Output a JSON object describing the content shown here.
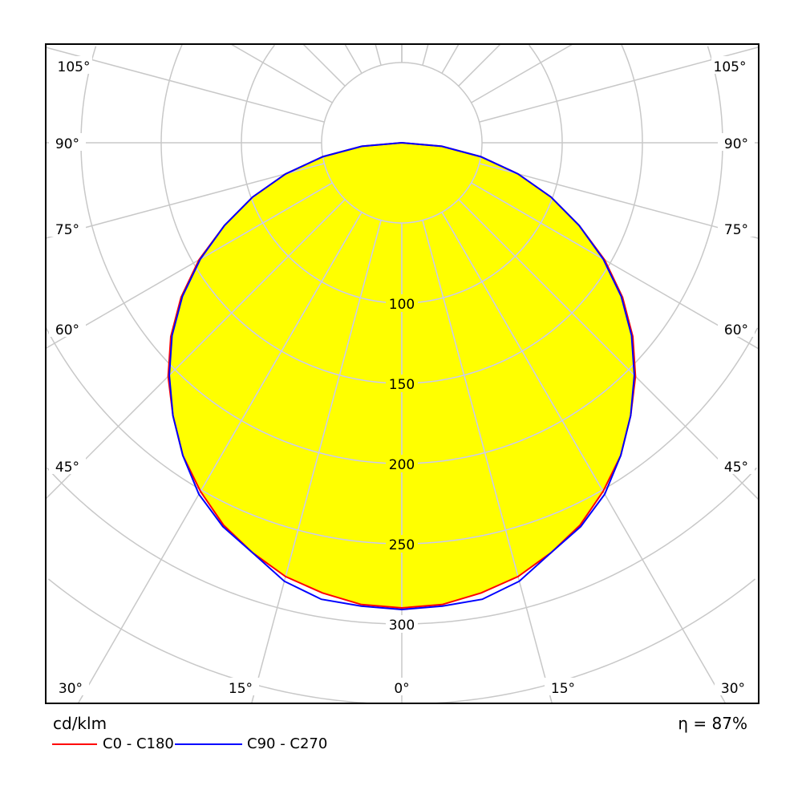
{
  "chart_data": {
    "type": "polar-line",
    "unit_label": "cd/klm",
    "efficiency_label": "η = 87%",
    "radial_ticks": [
      50,
      100,
      150,
      200,
      250,
      300,
      350
    ],
    "radial_tick_labels": [
      "100",
      "150",
      "200",
      "250",
      "300"
    ],
    "angle_labels": [
      "0°",
      "15°",
      "30°",
      "45°",
      "60°",
      "75°",
      "90°",
      "105°"
    ],
    "angles": [
      0,
      5,
      10,
      15,
      20,
      25,
      30,
      35,
      40,
      45,
      50,
      55,
      60,
      65,
      70,
      75,
      80,
      85,
      90
    ],
    "series": [
      {
        "name": "C0 - C180",
        "color": "#ff0000",
        "values": [
          290,
          289,
          285,
          280,
          272,
          263,
          251,
          238,
          222,
          206,
          188,
          168,
          146,
          122,
          99,
          75,
          50,
          25,
          0
        ]
      },
      {
        "name": "C90 - C270",
        "color": "#0000ff",
        "values": [
          291,
          290,
          289,
          283,
          272,
          264,
          253,
          238,
          222,
          205,
          187,
          167,
          145,
          122,
          99,
          75,
          50,
          25,
          0
        ]
      }
    ],
    "fill_color": "#ffff00",
    "grid": true
  }
}
